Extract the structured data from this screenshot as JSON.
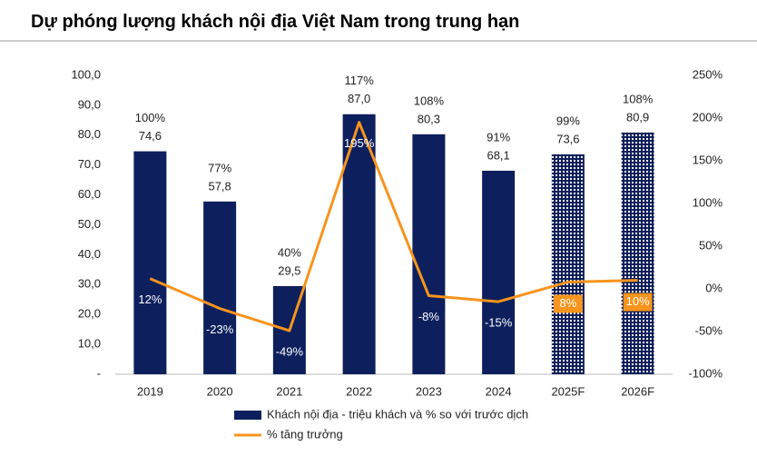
{
  "chart_data": {
    "type": "bar_line",
    "title": "Dự phóng lượng khách nội địa Việt Nam trong trung hạn",
    "categories": [
      "2019",
      "2020",
      "2021",
      "2022",
      "2023",
      "2024",
      "2025F",
      "2026F"
    ],
    "series": [
      {
        "name": "Khách nội địa - triệu khách và % so với trước dịch",
        "type": "bar",
        "color": "#0d1f5c",
        "values": [
          74.6,
          57.8,
          29.5,
          87.0,
          80.3,
          68.1,
          73.6,
          80.9
        ],
        "value_labels": [
          "74,6",
          "57,8",
          "29,5",
          "87,0",
          "80,3",
          "68,1",
          "73,6",
          "80,9"
        ],
        "annotations": [
          "100%",
          "77%",
          "40%",
          "117%",
          "108%",
          "91%",
          "99%",
          "108%"
        ],
        "hatched": [
          false,
          false,
          false,
          false,
          false,
          false,
          true,
          true
        ]
      },
      {
        "name": "% tăng trưởng",
        "type": "line",
        "axis": "y2",
        "color": "#f7941d",
        "values": [
          12,
          -23,
          -49,
          195,
          -8,
          -15,
          8,
          10
        ],
        "value_labels": [
          "12%",
          "-23%",
          "-49%",
          "195%",
          "-8%",
          "-15%",
          "8%",
          "10%"
        ]
      }
    ],
    "ylim": [
      0,
      100
    ],
    "yticks": [
      {
        "value": 0,
        "label": "-"
      },
      {
        "value": 10,
        "label": "10,0"
      },
      {
        "value": 20,
        "label": "20,0"
      },
      {
        "value": 30,
        "label": "30,0"
      },
      {
        "value": 40,
        "label": "40,0"
      },
      {
        "value": 50,
        "label": "50,0"
      },
      {
        "value": 60,
        "label": "60,0"
      },
      {
        "value": 70,
        "label": "70,0"
      },
      {
        "value": 80,
        "label": "80,0"
      },
      {
        "value": 90,
        "label": "90,0"
      },
      {
        "value": 100,
        "label": "100,0"
      }
    ],
    "y2lim": [
      -100,
      250
    ],
    "y2ticks": [
      {
        "value": -100,
        "label": "-100%"
      },
      {
        "value": -50,
        "label": "-50%"
      },
      {
        "value": 0,
        "label": "0%"
      },
      {
        "value": 50,
        "label": "50%"
      },
      {
        "value": 100,
        "label": "100%"
      },
      {
        "value": 150,
        "label": "150%"
      },
      {
        "value": 200,
        "label": "200%"
      },
      {
        "value": 250,
        "label": "250%"
      }
    ],
    "legend": "bottom"
  }
}
